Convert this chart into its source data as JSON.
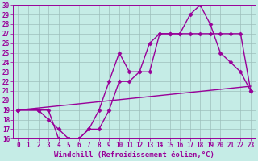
{
  "xlabel": "Windchill (Refroidissement éolien,°C)",
  "background_color": "#c5ece6",
  "line_color": "#990099",
  "xlim": [
    -0.5,
    23.5
  ],
  "ylim": [
    16,
    30
  ],
  "xticks": [
    0,
    1,
    2,
    3,
    4,
    5,
    6,
    7,
    8,
    9,
    10,
    11,
    12,
    13,
    14,
    15,
    16,
    17,
    18,
    19,
    20,
    21,
    22,
    23
  ],
  "yticks": [
    16,
    17,
    18,
    19,
    20,
    21,
    22,
    23,
    24,
    25,
    26,
    27,
    28,
    29,
    30
  ],
  "line1_x": [
    0,
    2,
    3,
    4,
    5,
    6,
    7,
    8,
    9,
    10,
    11,
    12,
    13,
    14,
    15,
    16,
    17,
    18,
    19,
    20,
    21,
    22,
    23
  ],
  "line1_y": [
    19,
    19,
    18,
    17,
    16,
    16,
    17,
    19,
    22,
    25,
    23,
    23,
    26,
    27,
    27,
    27,
    29,
    30,
    28,
    25,
    24,
    23,
    21
  ],
  "line2_x": [
    0,
    2,
    3,
    4,
    5,
    6,
    7,
    8,
    9,
    10,
    11,
    12,
    13,
    14,
    15,
    16,
    17,
    18,
    19,
    20,
    21,
    22,
    23
  ],
  "line2_y": [
    19,
    19,
    19,
    16,
    16,
    16,
    17,
    17,
    19,
    22,
    22,
    23,
    23,
    27,
    27,
    27,
    27,
    27,
    27,
    27,
    27,
    27,
    21
  ],
  "line3_x": [
    0,
    23
  ],
  "line3_y": [
    19,
    21.5
  ],
  "grid_color": "#9dbfbb",
  "marker": "D",
  "markersize": 2.5,
  "linewidth": 1.0,
  "xlabel_fontsize": 6.5,
  "tick_fontsize": 5.5
}
